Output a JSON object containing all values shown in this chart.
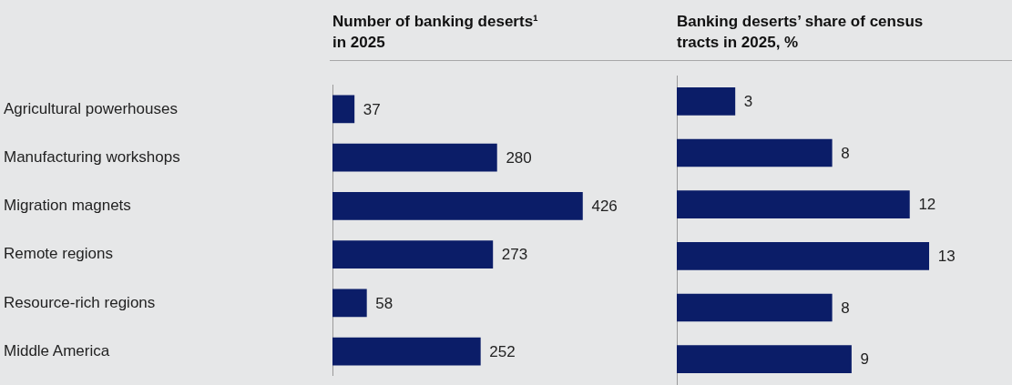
{
  "chart_data": [
    {
      "type": "bar",
      "orientation": "horizontal",
      "title": "Number of banking deserts¹ in 2025",
      "categories": [
        "Agricultural powerhouses",
        "Manufacturing workshops",
        "Migration magnets",
        "Remote regions",
        "Resource-rich regions",
        "Middle America"
      ],
      "values": [
        37,
        280,
        426,
        273,
        58,
        252
      ],
      "color": "#0b1d68",
      "data_labels": true,
      "tick_labels": "y"
    },
    {
      "type": "bar",
      "orientation": "horizontal",
      "title": "Banking deserts’ share of census tracts in 2025, %",
      "categories": [
        null,
        null,
        null,
        null,
        null,
        null
      ],
      "values": [
        3,
        8,
        12,
        13,
        8,
        9
      ],
      "color": "#0b1d68",
      "data_labels": true,
      "tick_labels": false
    }
  ]
}
